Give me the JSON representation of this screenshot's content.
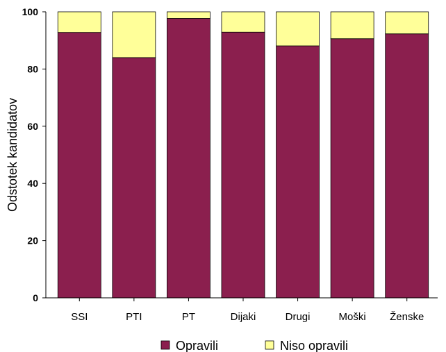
{
  "chart_data": {
    "type": "bar",
    "stacked": true,
    "percent_stacked": true,
    "categories": [
      "SSI",
      "PTI",
      "PT",
      "Dijaki",
      "Drugi",
      "Moški",
      "Ženske"
    ],
    "series": [
      {
        "name": "Opravili",
        "color": "#8b1f4e",
        "values": [
          92.8,
          84.0,
          97.7,
          92.9,
          88.1,
          90.6,
          92.3
        ]
      },
      {
        "name": "Niso opravili",
        "color": "#ffff99",
        "values": [
          7.2,
          16.0,
          2.3,
          7.1,
          11.9,
          9.4,
          7.7
        ]
      }
    ],
    "title": "",
    "xlabel": "",
    "ylabel": "Odstotek kandidatov",
    "ylim": [
      0,
      100
    ],
    "yticks": [
      0,
      20,
      40,
      60,
      80,
      100
    ],
    "grid": false,
    "legend_position": "bottom"
  }
}
